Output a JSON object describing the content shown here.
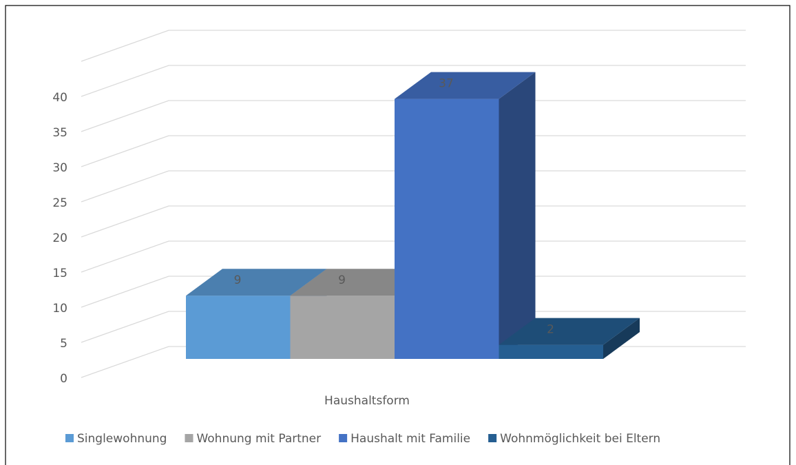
{
  "chart_data": {
    "type": "bar3d",
    "categories": [
      "Haushaltsform"
    ],
    "series": [
      {
        "name": "Singlewohnung",
        "color": "#5b9bd5",
        "values": [
          9
        ]
      },
      {
        "name": "Wohnung mit Partner",
        "color": "#a5a5a5",
        "values": [
          9
        ]
      },
      {
        "name": "Haushalt mit Familie",
        "color": "#4472c4",
        "values": [
          37
        ]
      },
      {
        "name": "Wohnmöglichkeit bei Eltern",
        "color": "#255e91",
        "values": [
          2
        ]
      }
    ],
    "ylim": [
      0,
      45
    ],
    "yticks": [
      0,
      5,
      10,
      15,
      20,
      25,
      30,
      35,
      40
    ],
    "grid": true,
    "legend": "bottom",
    "data_labels": true
  }
}
